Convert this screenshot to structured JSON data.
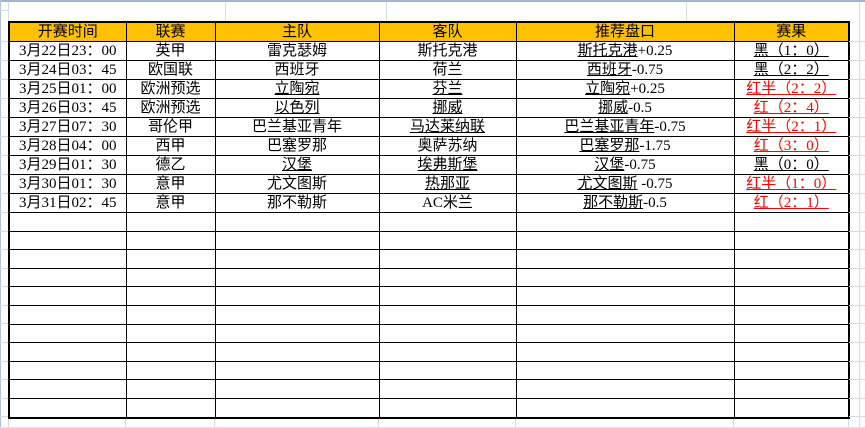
{
  "colors": {
    "header_bg": "#FFC000",
    "result_red": "#FF0000",
    "result_black": "#000000"
  },
  "table": {
    "headers": [
      {
        "key": "time",
        "label": "开赛时间"
      },
      {
        "key": "league",
        "label": "联赛"
      },
      {
        "key": "home",
        "label": "主队"
      },
      {
        "key": "away",
        "label": "客队"
      },
      {
        "key": "handicap",
        "label": "推荐盘口"
      },
      {
        "key": "result",
        "label": "赛果"
      }
    ],
    "rows": [
      {
        "time": "3月22日23：00",
        "league": "英甲",
        "home": {
          "text": "雷克瑟姆",
          "underline": false
        },
        "away": {
          "text": "斯托克港",
          "underline": false
        },
        "handicap": {
          "team": "斯托克港",
          "line": "+0.25",
          "team_underline": true
        },
        "result": {
          "text": "黑（1：0）",
          "color": "black",
          "underline": true
        }
      },
      {
        "time": "3月24日03：45",
        "league": "欧国联",
        "home": {
          "text": "西班牙",
          "underline": false
        },
        "away": {
          "text": "荷兰",
          "underline": false
        },
        "handicap": {
          "team": "西班牙",
          "line": "-0.75",
          "team_underline": true
        },
        "result": {
          "text": "黑（2：2）",
          "color": "black",
          "underline": true
        }
      },
      {
        "time": "3月25日01：00",
        "league": "欧洲预选",
        "home": {
          "text": "立陶宛",
          "underline": true
        },
        "away": {
          "text": "芬兰",
          "underline": true
        },
        "handicap": {
          "team": "立陶宛",
          "line": "+0.25",
          "team_underline": true
        },
        "result": {
          "text": "红半（2：2）",
          "color": "red",
          "underline": true
        }
      },
      {
        "time": "3月26日03：45",
        "league": "欧洲预选",
        "home": {
          "text": "以色列",
          "underline": true
        },
        "away": {
          "text": "挪威",
          "underline": true
        },
        "handicap": {
          "team": "挪威",
          "line": "-0.5",
          "team_underline": true
        },
        "result": {
          "text": "红（2：4）",
          "color": "red",
          "underline": true
        }
      },
      {
        "time": "3月27日07：30",
        "league": "哥伦甲",
        "home": {
          "text": "巴兰基亚青年",
          "underline": false
        },
        "away": {
          "text": "马达莱纳联",
          "underline": true
        },
        "handicap": {
          "team": "巴兰基亚青年",
          "line": "-0.75",
          "team_underline": true
        },
        "result": {
          "text": "红半（2：1）",
          "color": "red",
          "underline": true
        }
      },
      {
        "time": "3月28日04：00",
        "league": "西甲",
        "home": {
          "text": "巴塞罗那",
          "underline": false
        },
        "away": {
          "text": "奥萨苏纳",
          "underline": false
        },
        "handicap": {
          "team": "巴塞罗那",
          "line": "-1.75",
          "team_underline": true
        },
        "result": {
          "text": "红（3：0）",
          "color": "red",
          "underline": true
        }
      },
      {
        "time": "3月29日01：30",
        "league": "德乙",
        "home": {
          "text": "汉堡",
          "underline": true
        },
        "away": {
          "text": "埃弗斯堡",
          "underline": true
        },
        "handicap": {
          "team": "汉堡",
          "line": "-0.75",
          "team_underline": true
        },
        "result": {
          "text": "黑（0：0）",
          "color": "black",
          "underline": true
        }
      },
      {
        "time": "3月30日01：30",
        "league": "意甲",
        "home": {
          "text": "尤文图斯",
          "underline": false
        },
        "away": {
          "text": "热那亚",
          "underline": true
        },
        "handicap": {
          "team": "尤文图斯",
          "line": " -0.75",
          "team_underline": true
        },
        "result": {
          "text": "红半（1：0）",
          "color": "red",
          "underline": true
        }
      },
      {
        "time": "3月31日02：45",
        "league": "意甲",
        "home": {
          "text": "那不勒斯",
          "underline": false
        },
        "away": {
          "text": "AC米兰",
          "underline": false
        },
        "handicap": {
          "team": "那不勒斯",
          "line": "-0.5",
          "team_underline": true
        },
        "result": {
          "text": "红（2：1）",
          "color": "red",
          "underline": true
        }
      }
    ],
    "empty_row_count": 11
  }
}
